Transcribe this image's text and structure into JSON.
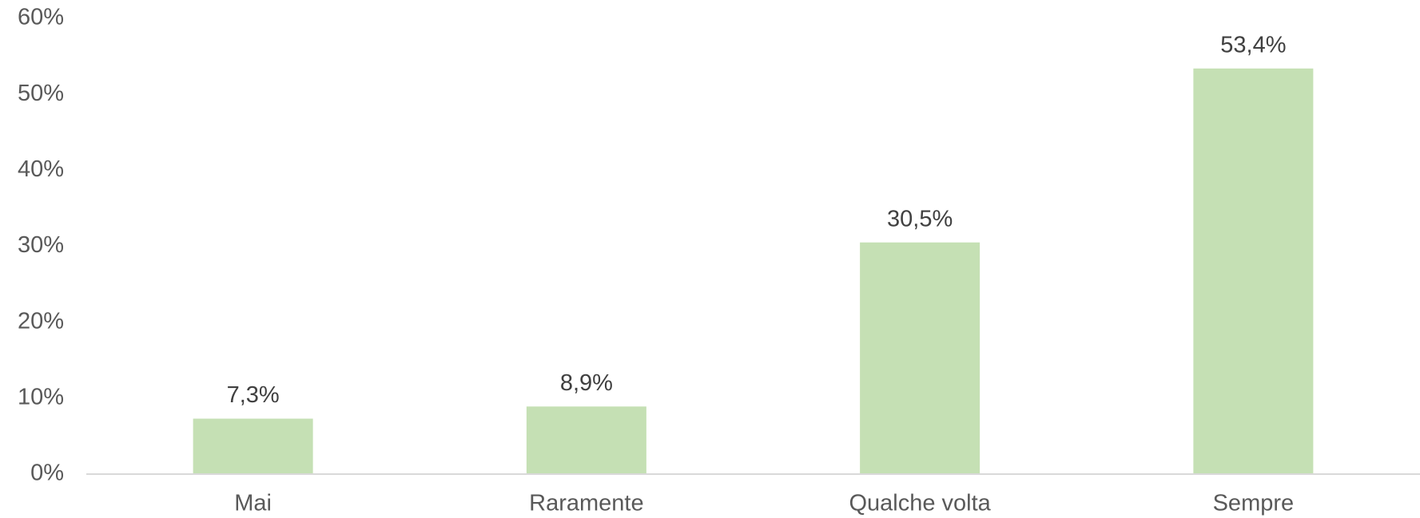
{
  "chart_data": {
    "type": "bar",
    "categories": [
      "Mai",
      "Raramente",
      "Qualche volta",
      "Sempre"
    ],
    "values": [
      7.3,
      8.9,
      30.5,
      53.4
    ],
    "value_labels": [
      "7,3%",
      "8,9%",
      "30,5%",
      "53,4%"
    ],
    "color": "#c5e0b4",
    "ylim": [
      0,
      60
    ],
    "yticks": [
      {
        "value": 0,
        "label": "0%"
      },
      {
        "value": 10,
        "label": "10%"
      },
      {
        "value": 20,
        "label": "20%"
      },
      {
        "value": 30,
        "label": "30%"
      },
      {
        "value": 40,
        "label": "40%"
      },
      {
        "value": 50,
        "label": "50%"
      },
      {
        "value": 60,
        "label": "60%"
      }
    ],
    "grid": false
  }
}
